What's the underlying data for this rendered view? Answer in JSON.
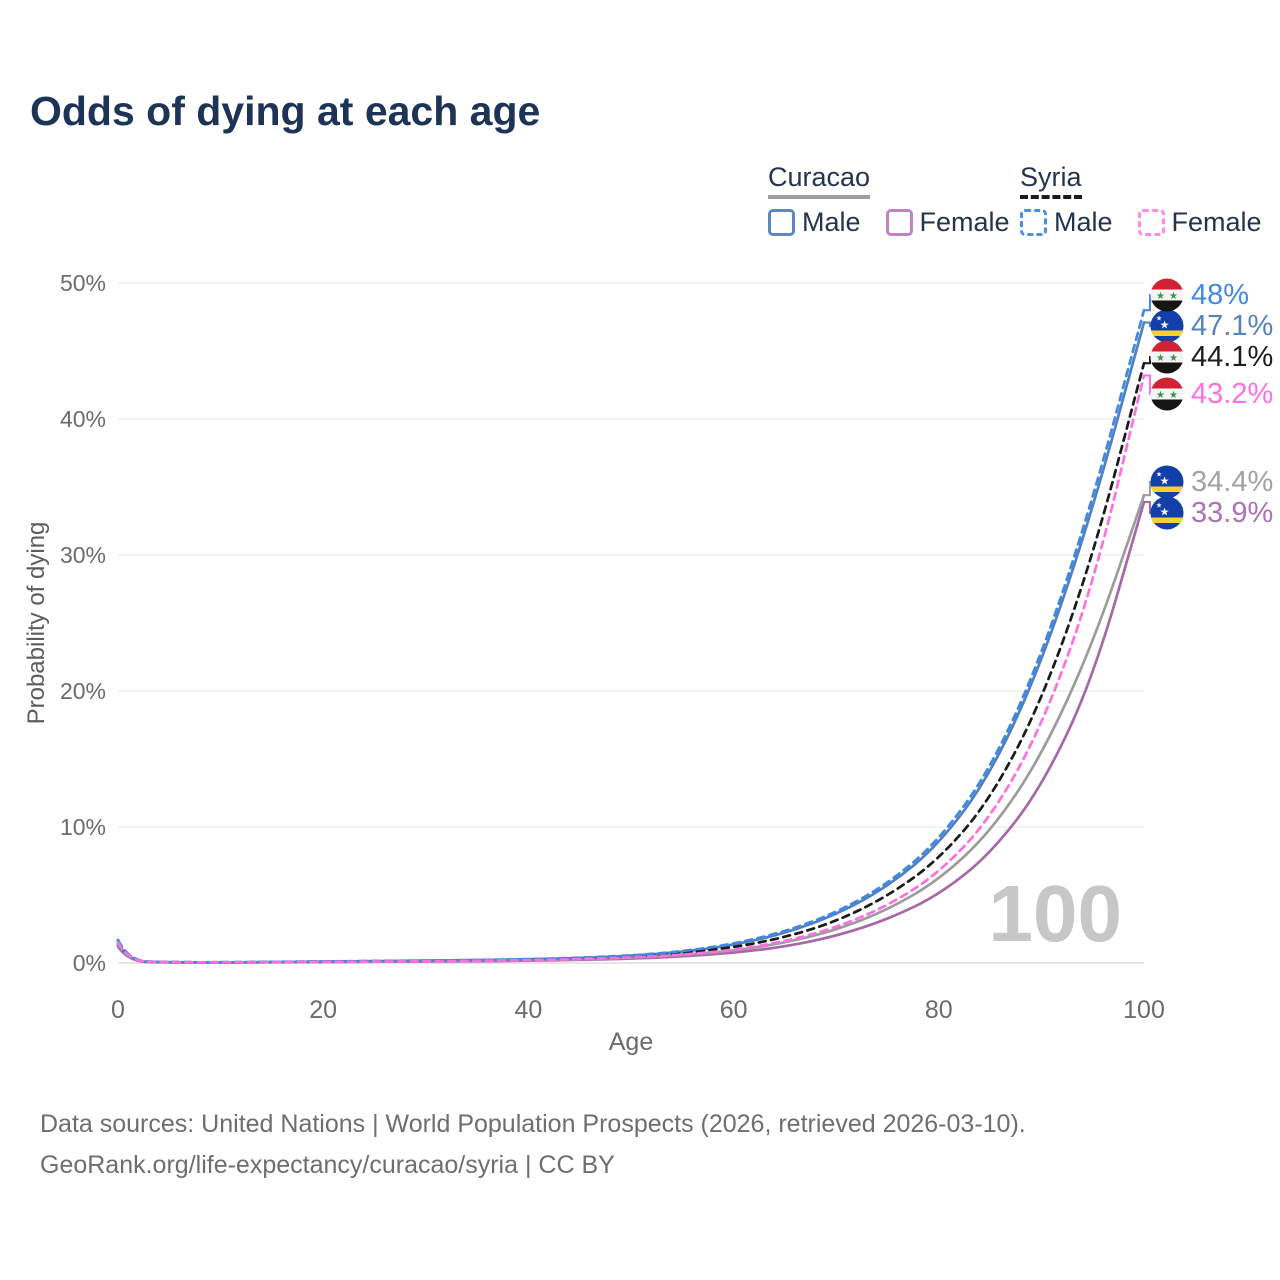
{
  "title": "Odds of dying at each age",
  "legend": {
    "curacao": {
      "name": "Curacao",
      "male_label": "Male",
      "female_label": "Female"
    },
    "syria": {
      "name": "Syria",
      "male_label": "Male",
      "female_label": "Female"
    }
  },
  "footer": {
    "line1": "Data sources: United Nations | World Population Prospects (2026, retrieved 2026-03-10).",
    "line2": "GeoRank.org/life-expectancy/curacao/syria | CC BY"
  },
  "chart_data": {
    "type": "line",
    "title": "Odds of dying at each age",
    "xlabel": "Age",
    "ylabel": "Probability of dying",
    "xlim": [
      0,
      100
    ],
    "ylim": [
      0,
      50
    ],
    "grid": "horizontal-only",
    "legend_position": "top-right",
    "age_indicator": "100",
    "xticks": [
      {
        "value": 0,
        "label": "0"
      },
      {
        "value": 20,
        "label": "20"
      },
      {
        "value": 40,
        "label": "40"
      },
      {
        "value": 60,
        "label": "60"
      },
      {
        "value": 80,
        "label": "80"
      },
      {
        "value": 100,
        "label": "100"
      }
    ],
    "yticks": [
      {
        "value": 0,
        "label": "0%"
      },
      {
        "value": 10,
        "label": "10%"
      },
      {
        "value": 20,
        "label": "20%"
      },
      {
        "value": 30,
        "label": "30%"
      },
      {
        "value": 40,
        "label": "40%"
      },
      {
        "value": 50,
        "label": "50%"
      }
    ],
    "ages": [
      0,
      1,
      5,
      10,
      15,
      20,
      25,
      30,
      35,
      40,
      45,
      50,
      55,
      60,
      65,
      70,
      75,
      80,
      85,
      90,
      95,
      100
    ],
    "series": [
      {
        "name": "curacao_female",
        "country": "curacao",
        "sex": "female",
        "dashed": false,
        "color": "#a668a8",
        "legend_color": "#c183c4",
        "label_color": "#a973b5",
        "end_label": "33.9%",
        "values": [
          1.2,
          0.09,
          0.04,
          0.04,
          0.05,
          0.07,
          0.09,
          0.11,
          0.13,
          0.17,
          0.23,
          0.32,
          0.48,
          0.74,
          1.2,
          1.98,
          3.2,
          5.0,
          8.0,
          12.9,
          20.8,
          33.9
        ]
      },
      {
        "name": "curacao_both",
        "country": "curacao",
        "sex": "both",
        "dashed": false,
        "color": "#9c9c9c",
        "legend_color": "#9e9e9e",
        "label_color": "#a2a2a2",
        "end_label": "34.4%",
        "values": [
          1.3,
          0.1,
          0.05,
          0.04,
          0.06,
          0.09,
          0.11,
          0.13,
          0.16,
          0.21,
          0.28,
          0.4,
          0.59,
          0.9,
          1.48,
          2.42,
          3.9,
          6.1,
          9.6,
          15.2,
          23.4,
          34.4
        ]
      },
      {
        "name": "curacao_male",
        "country": "curacao",
        "sex": "male",
        "dashed": false,
        "color": "#5080bd",
        "legend_color": "#5b87c5",
        "label_color": "#5584bc",
        "end_label": "47.1%",
        "values": [
          1.4,
          0.11,
          0.05,
          0.04,
          0.07,
          0.11,
          0.14,
          0.17,
          0.21,
          0.27,
          0.36,
          0.52,
          0.8,
          1.32,
          2.18,
          3.55,
          5.6,
          8.7,
          13.8,
          22.0,
          33.3,
          47.1
        ]
      },
      {
        "name": "syria_both",
        "country": "syria",
        "sex": "both",
        "dashed": true,
        "color": "#1b1b1b",
        "legend_color": "#1b1b1b",
        "label_color": "#1d1d1d",
        "end_label": "44.1%",
        "values": [
          1.6,
          0.13,
          0.06,
          0.05,
          0.07,
          0.1,
          0.13,
          0.15,
          0.19,
          0.24,
          0.33,
          0.47,
          0.72,
          1.15,
          1.88,
          3.05,
          4.9,
          7.6,
          12.0,
          19.2,
          29.8,
          44.1
        ]
      },
      {
        "name": "syria_male",
        "country": "syria",
        "sex": "male",
        "dashed": true,
        "color": "#3f88e6",
        "legend_color": "#4a8fe8",
        "label_color": "#4189e6",
        "end_label": "48%",
        "values": [
          1.7,
          0.14,
          0.06,
          0.05,
          0.08,
          0.12,
          0.15,
          0.18,
          0.22,
          0.28,
          0.38,
          0.55,
          0.85,
          1.4,
          2.3,
          3.7,
          5.8,
          9.0,
          14.2,
          22.5,
          34.0,
          48.0
        ]
      },
      {
        "name": "syria_female",
        "country": "syria",
        "sex": "female",
        "dashed": true,
        "color": "#ff70df",
        "legend_color": "#ff8ae8",
        "label_color": "#ff70df",
        "end_label": "43.2%",
        "values": [
          1.5,
          0.12,
          0.05,
          0.04,
          0.06,
          0.08,
          0.1,
          0.12,
          0.16,
          0.21,
          0.28,
          0.4,
          0.6,
          0.95,
          1.58,
          2.6,
          4.2,
          6.6,
          10.6,
          17.3,
          27.6,
          43.2
        ]
      }
    ],
    "flag_colors": {
      "syria_red": "#cf2233",
      "syria_white": "#f4f4f4",
      "syria_black": "#151515",
      "syria_star_green": "#3c9347",
      "curacao_blue": "#123faa",
      "curacao_yellow": "#f8d12e",
      "curacao_star_white": "#ffffff"
    }
  }
}
